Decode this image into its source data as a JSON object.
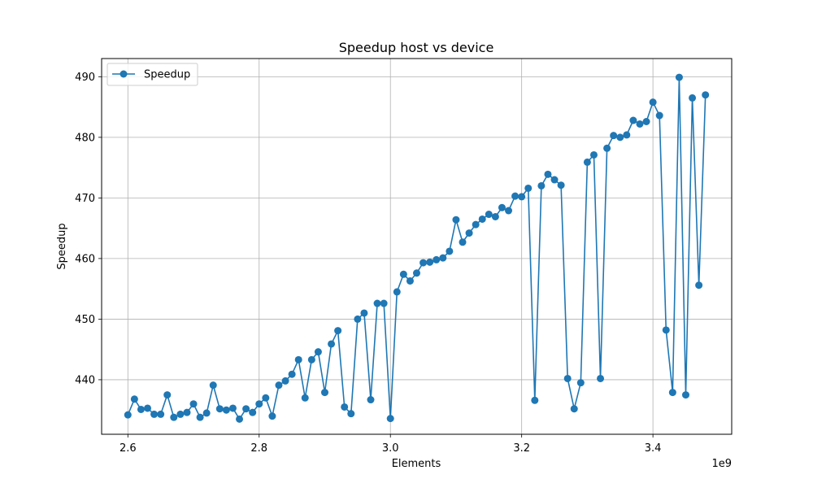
{
  "chart_data": {
    "type": "line",
    "title": "Speedup host vs device",
    "xlabel": "Elements",
    "ylabel": "Speedup",
    "x_offset_label": "1e9",
    "xlim": [
      2.56,
      3.52
    ],
    "ylim": [
      431,
      493
    ],
    "x_ticks": [
      2.6,
      2.8,
      3.0,
      3.2,
      3.4
    ],
    "x_tick_labels": [
      "2.6",
      "2.8",
      "3.0",
      "3.2",
      "3.4"
    ],
    "y_ticks": [
      440,
      450,
      460,
      470,
      480,
      490
    ],
    "y_tick_labels": [
      "440",
      "450",
      "460",
      "470",
      "480",
      "490"
    ],
    "grid": true,
    "legend_position": "top-left",
    "series": [
      {
        "name": "Speedup",
        "color": "#1f77b4",
        "x": [
          2.6,
          2.61,
          2.62,
          2.63,
          2.64,
          2.65,
          2.66,
          2.67,
          2.68,
          2.69,
          2.7,
          2.71,
          2.72,
          2.73,
          2.74,
          2.75,
          2.76,
          2.77,
          2.78,
          2.79,
          2.8,
          2.81,
          2.82,
          2.83,
          2.84,
          2.85,
          2.86,
          2.87,
          2.88,
          2.89,
          2.9,
          2.91,
          2.92,
          2.93,
          2.94,
          2.95,
          2.96,
          2.97,
          2.98,
          2.99,
          3.0,
          3.01,
          3.02,
          3.03,
          3.04,
          3.05,
          3.06,
          3.07,
          3.08,
          3.09,
          3.1,
          3.11,
          3.12,
          3.13,
          3.14,
          3.15,
          3.16,
          3.17,
          3.18,
          3.19,
          3.2,
          3.21,
          3.22,
          3.23,
          3.24,
          3.25,
          3.26,
          3.27,
          3.28,
          3.29,
          3.3,
          3.31,
          3.32,
          3.33,
          3.34,
          3.35,
          3.36,
          3.37,
          3.38,
          3.39,
          3.4,
          3.41,
          3.42,
          3.43,
          3.44,
          3.45,
          3.46,
          3.47,
          3.48
        ],
        "values": [
          434.2,
          436.8,
          435.1,
          435.3,
          434.3,
          434.3,
          437.5,
          433.8,
          434.3,
          434.6,
          436.0,
          433.8,
          434.5,
          439.1,
          435.2,
          435.0,
          435.3,
          433.5,
          435.2,
          434.6,
          436.0,
          437.0,
          434.0,
          439.1,
          439.8,
          440.9,
          443.3,
          437.0,
          443.3,
          444.6,
          437.9,
          445.9,
          448.1,
          435.5,
          434.4,
          450.0,
          451.0,
          436.7,
          452.6,
          452.6,
          433.6,
          454.5,
          457.4,
          456.3,
          457.6,
          459.3,
          459.4,
          459.8,
          460.1,
          461.2,
          466.4,
          462.7,
          464.2,
          465.6,
          466.5,
          467.3,
          466.9,
          468.4,
          467.9,
          470.3,
          470.2,
          471.6,
          436.6,
          472.0,
          473.9,
          473.0,
          472.1,
          440.2,
          435.2,
          439.5,
          475.9,
          477.1,
          440.2,
          478.2,
          480.3,
          480.0,
          480.4,
          482.8,
          482.2,
          482.6,
          485.8,
          483.6,
          448.2,
          437.9,
          489.9,
          437.5,
          486.5,
          455.6,
          487.0
        ]
      }
    ]
  }
}
